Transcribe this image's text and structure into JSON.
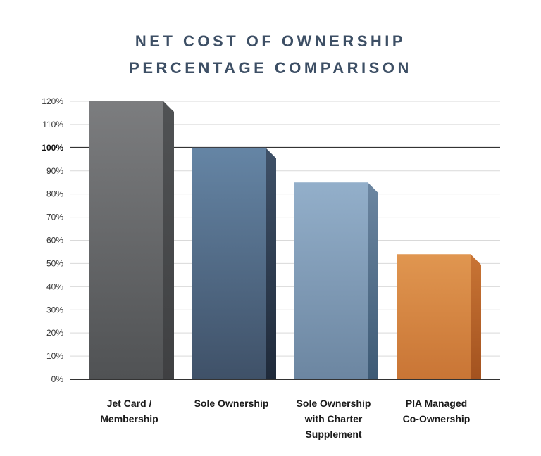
{
  "chart_data": {
    "type": "bar",
    "title_lines": [
      "NET COST OF OWNERSHIP",
      "PERCENTAGE COMPARISON"
    ],
    "categories": [
      [
        "Jet Card /",
        "Membership"
      ],
      [
        "Sole Ownership"
      ],
      [
        "Sole Ownership",
        "with Charter",
        "Supplement"
      ],
      [
        "PIA Managed",
        "Co-Ownership"
      ]
    ],
    "values": [
      120,
      100,
      85,
      54
    ],
    "yticks": [
      "0%",
      "10%",
      "20%",
      "30%",
      "40%",
      "50%",
      "60%",
      "70%",
      "80%",
      "90%",
      "100%",
      "110%",
      "120%"
    ],
    "ylim": [
      0,
      120
    ],
    "reference_line": 100,
    "grid": true,
    "bar_colors": [
      {
        "top": "#7c7d7f",
        "bottom": "#505254",
        "side": "#3f4042"
      },
      {
        "top": "#6585a5",
        "bottom": "#3f5168",
        "side": "#1f2a3a"
      },
      {
        "top": "#93afca",
        "bottom": "#6c86a1",
        "side": "#3d5a75"
      },
      {
        "top": "#e09650",
        "bottom": "#c97535",
        "side": "#a3521f"
      }
    ]
  }
}
